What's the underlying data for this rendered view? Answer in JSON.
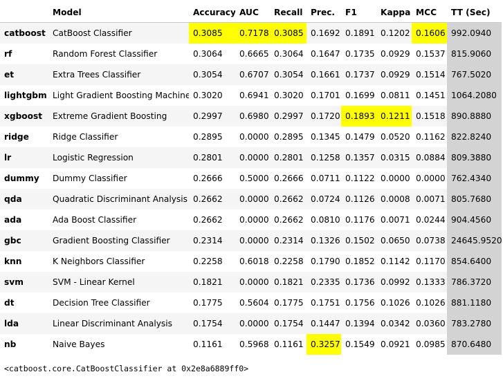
{
  "colors": {
    "highlight": "#ffff00",
    "tt_column": "#d3d3d3",
    "stripe": "#f5f5f5"
  },
  "table": {
    "headers": [
      "",
      "Model",
      "Accuracy",
      "AUC",
      "Recall",
      "Prec.",
      "F1",
      "Kappa",
      "MCC",
      "TT (Sec)"
    ],
    "rows": [
      {
        "id": "catboost",
        "cells": [
          "CatBoost Classifier",
          "0.3085",
          "0.7178",
          "0.3085",
          "0.1692",
          "0.1891",
          "0.1202",
          "0.1606",
          "992.0940"
        ],
        "highlight": [
          2,
          3,
          4,
          8
        ]
      },
      {
        "id": "rf",
        "cells": [
          "Random Forest Classifier",
          "0.3064",
          "0.6665",
          "0.3064",
          "0.1647",
          "0.1735",
          "0.0929",
          "0.1537",
          "815.9060"
        ],
        "highlight": []
      },
      {
        "id": "et",
        "cells": [
          "Extra Trees Classifier",
          "0.3054",
          "0.6707",
          "0.3054",
          "0.1661",
          "0.1737",
          "0.0929",
          "0.1514",
          "767.5020"
        ],
        "highlight": []
      },
      {
        "id": "lightgbm",
        "cells": [
          "Light Gradient Boosting Machine",
          "0.3020",
          "0.6941",
          "0.3020",
          "0.1701",
          "0.1699",
          "0.0811",
          "0.1451",
          "1064.2080"
        ],
        "highlight": []
      },
      {
        "id": "xgboost",
        "cells": [
          "Extreme Gradient Boosting",
          "0.2997",
          "0.6980",
          "0.2997",
          "0.1720",
          "0.1893",
          "0.1211",
          "0.1518",
          "890.8880"
        ],
        "highlight": [
          6,
          7
        ]
      },
      {
        "id": "ridge",
        "cells": [
          "Ridge Classifier",
          "0.2895",
          "0.0000",
          "0.2895",
          "0.1345",
          "0.1479",
          "0.0520",
          "0.1162",
          "822.8240"
        ],
        "highlight": []
      },
      {
        "id": "lr",
        "cells": [
          "Logistic Regression",
          "0.2801",
          "0.0000",
          "0.2801",
          "0.1258",
          "0.1357",
          "0.0315",
          "0.0884",
          "809.3880"
        ],
        "highlight": []
      },
      {
        "id": "dummy",
        "cells": [
          "Dummy Classifier",
          "0.2666",
          "0.5000",
          "0.2666",
          "0.0711",
          "0.1122",
          "0.0000",
          "0.0000",
          "762.4340"
        ],
        "highlight": []
      },
      {
        "id": "qda",
        "cells": [
          "Quadratic Discriminant Analysis",
          "0.2662",
          "0.0000",
          "0.2662",
          "0.0724",
          "0.1126",
          "0.0008",
          "0.0071",
          "805.7680"
        ],
        "highlight": []
      },
      {
        "id": "ada",
        "cells": [
          "Ada Boost Classifier",
          "0.2662",
          "0.0000",
          "0.2662",
          "0.0810",
          "0.1176",
          "0.0071",
          "0.0244",
          "904.4560"
        ],
        "highlight": []
      },
      {
        "id": "gbc",
        "cells": [
          "Gradient Boosting Classifier",
          "0.2314",
          "0.0000",
          "0.2314",
          "0.1326",
          "0.1502",
          "0.0650",
          "0.0738",
          "24645.9520"
        ],
        "highlight": []
      },
      {
        "id": "knn",
        "cells": [
          "K Neighbors Classifier",
          "0.2258",
          "0.6018",
          "0.2258",
          "0.1790",
          "0.1852",
          "0.1142",
          "0.1170",
          "854.6400"
        ],
        "highlight": []
      },
      {
        "id": "svm",
        "cells": [
          "SVM - Linear Kernel",
          "0.1821",
          "0.0000",
          "0.1821",
          "0.2335",
          "0.1736",
          "0.0992",
          "0.1333",
          "786.3720"
        ],
        "highlight": []
      },
      {
        "id": "dt",
        "cells": [
          "Decision Tree Classifier",
          "0.1775",
          "0.5604",
          "0.1775",
          "0.1751",
          "0.1756",
          "0.1026",
          "0.1026",
          "881.1180"
        ],
        "highlight": []
      },
      {
        "id": "lda",
        "cells": [
          "Linear Discriminant Analysis",
          "0.1754",
          "0.0000",
          "0.1754",
          "0.1447",
          "0.1394",
          "0.0342",
          "0.0360",
          "783.2780"
        ],
        "highlight": []
      },
      {
        "id": "nb",
        "cells": [
          "Naive Bayes",
          "0.1161",
          "0.5968",
          "0.1161",
          "0.3257",
          "0.1549",
          "0.0921",
          "0.0985",
          "870.6480"
        ],
        "highlight": [
          5
        ]
      }
    ]
  },
  "output_text": "<catboost.core.CatBoostClassifier at 0x2e8a6889ff0>"
}
